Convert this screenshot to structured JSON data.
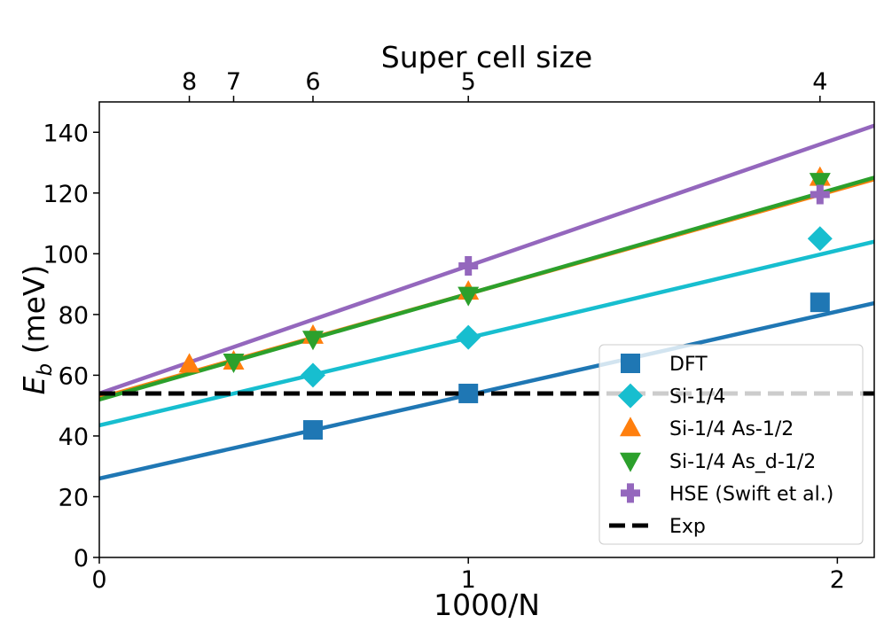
{
  "chart_data": {
    "type": "scatter",
    "title": "",
    "xlabel": "1000/N",
    "ylabel": "E_b (meV)",
    "ylabel_main": "E",
    "ylabel_sub": "b",
    "ylabel_unit": " (meV)",
    "top_xlabel": "Super cell size",
    "xlim": [
      0,
      2.1
    ],
    "ylim": [
      0,
      150
    ],
    "xticks": [
      0,
      1,
      2
    ],
    "xtick_labels": [
      "0",
      "1",
      "2"
    ],
    "yticks": [
      0,
      20,
      40,
      60,
      80,
      100,
      120,
      140
    ],
    "ytick_labels": [
      "0",
      "20",
      "40",
      "60",
      "80",
      "100",
      "120",
      "140"
    ],
    "top_ticks": [
      {
        "x": 0.244,
        "label": "8"
      },
      {
        "x": 0.364,
        "label": "7"
      },
      {
        "x": 0.579,
        "label": "6"
      },
      {
        "x": 1.0,
        "label": "5"
      },
      {
        "x": 1.953,
        "label": "4"
      }
    ],
    "series": [
      {
        "name": "DFT",
        "color": "#1f77b4",
        "marker": "square",
        "points": [
          [
            0.579,
            42
          ],
          [
            1.0,
            54
          ],
          [
            1.953,
            84
          ]
        ],
        "fit": {
          "intercept": 26,
          "slope": 27.5
        }
      },
      {
        "name": "Si-1/4",
        "color": "#17becf",
        "marker": "diamond",
        "points": [
          [
            0.579,
            60
          ],
          [
            1.0,
            72.5
          ],
          [
            1.953,
            105
          ]
        ],
        "fit": {
          "intercept": 43.5,
          "slope": 28.8
        }
      },
      {
        "name": "Si-1/4 As-1/2",
        "color": "#ff7f0e",
        "marker": "triangle-up",
        "points": [
          [
            0.244,
            63.5
          ],
          [
            0.364,
            64.5
          ],
          [
            0.579,
            73
          ],
          [
            1.0,
            87.5
          ],
          [
            1.953,
            125
          ]
        ],
        "fit": {
          "intercept": 52.5,
          "slope": 34.3
        }
      },
      {
        "name": "Si-1/4 As_d-1/2",
        "color": "#2ca02c",
        "marker": "triangle-down",
        "points": [
          [
            0.364,
            64.5
          ],
          [
            0.579,
            72
          ],
          [
            1.0,
            86.5
          ],
          [
            1.953,
            124
          ]
        ],
        "fit": {
          "intercept": 52,
          "slope": 34.8
        }
      },
      {
        "name": "HSE (Swift et al.)",
        "color": "#9467bd",
        "marker": "plus",
        "points": [
          [
            1.0,
            96
          ],
          [
            1.953,
            119.5
          ]
        ],
        "fit": {
          "intercept": 54,
          "slope": 42
        }
      }
    ],
    "reference_line": {
      "name": "Exp",
      "y": 54,
      "color": "#000000",
      "style": "dashed"
    },
    "legend_position": "lower-right"
  }
}
